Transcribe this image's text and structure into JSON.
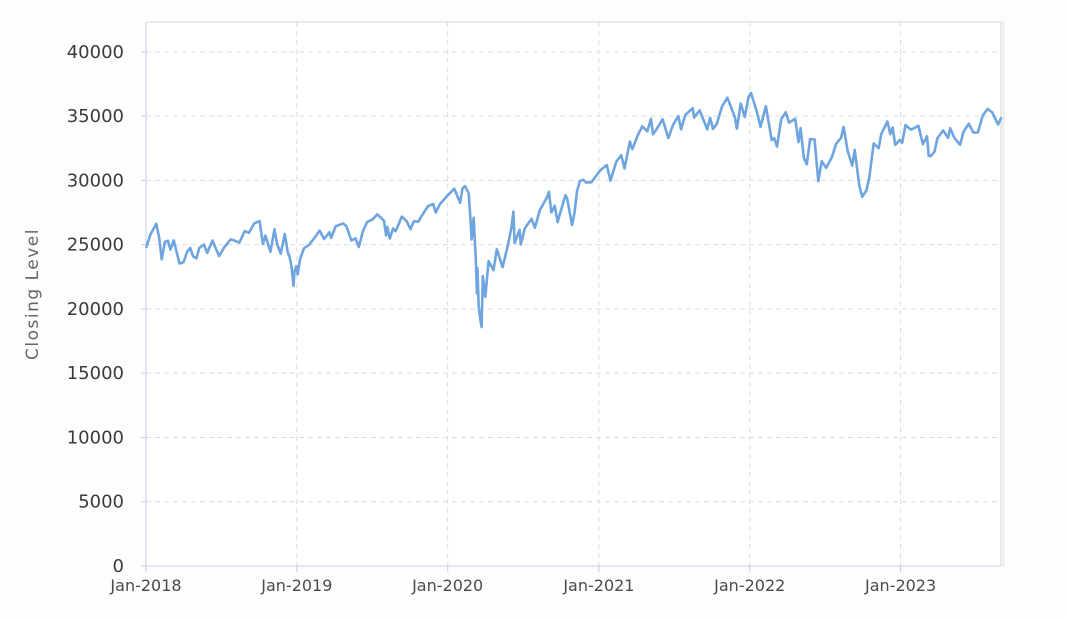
{
  "page": {
    "background": "#fdfdfb"
  },
  "chart_data": {
    "type": "line",
    "title": "",
    "xlabel": "",
    "ylabel": "Closing Level",
    "legend": "none",
    "grid": "dashed-both-axes",
    "ylim": [
      0,
      42320
    ],
    "yticks": [
      0,
      5000,
      10000,
      15000,
      20000,
      25000,
      30000,
      35000,
      40000
    ],
    "x_range": [
      "2018-01-01",
      "2023-09-01"
    ],
    "xticks": [
      {
        "label": "Jan-2018",
        "date": "2018-01-01"
      },
      {
        "label": "Jan-2019",
        "date": "2019-01-01"
      },
      {
        "label": "Jan-2020",
        "date": "2020-01-01"
      },
      {
        "label": "Jan-2021",
        "date": "2021-01-01"
      },
      {
        "label": "Jan-2022",
        "date": "2022-01-01"
      },
      {
        "label": "Jan-2023",
        "date": "2023-01-01"
      }
    ],
    "colors": {
      "line": "#6fa5df",
      "grid": "#dbdbdb",
      "axis": "#c8cce8",
      "border": "#d6d6d6",
      "border_shadow": "#ececec",
      "tick_text": "#3b3b3b",
      "axis_title_text": "#666666",
      "plot_bg": "#ffffff"
    },
    "series": [
      {
        "name": "Closing Level",
        "points": [
          [
            "2018-01-02",
            24824
          ],
          [
            "2018-01-12",
            25803
          ],
          [
            "2018-01-26",
            26617
          ],
          [
            "2018-02-02",
            25521
          ],
          [
            "2018-02-08",
            23860
          ],
          [
            "2018-02-16",
            25219
          ],
          [
            "2018-02-23",
            25310
          ],
          [
            "2018-03-01",
            24608
          ],
          [
            "2018-03-09",
            25336
          ],
          [
            "2018-03-23",
            23533
          ],
          [
            "2018-04-02",
            23644
          ],
          [
            "2018-04-10",
            24408
          ],
          [
            "2018-04-18",
            24748
          ],
          [
            "2018-04-25",
            24084
          ],
          [
            "2018-05-03",
            23930
          ],
          [
            "2018-05-10",
            24739
          ],
          [
            "2018-05-21",
            25013
          ],
          [
            "2018-05-29",
            24361
          ],
          [
            "2018-06-11",
            25322
          ],
          [
            "2018-06-19",
            24700
          ],
          [
            "2018-06-27",
            24118
          ],
          [
            "2018-07-09",
            24776
          ],
          [
            "2018-07-25",
            25414
          ],
          [
            "2018-08-01",
            25334
          ],
          [
            "2018-08-15",
            25162
          ],
          [
            "2018-08-28",
            26064
          ],
          [
            "2018-09-07",
            25917
          ],
          [
            "2018-09-20",
            26657
          ],
          [
            "2018-10-03",
            26828
          ],
          [
            "2018-10-11",
            25053
          ],
          [
            "2018-10-17",
            25707
          ],
          [
            "2018-10-29",
            24443
          ],
          [
            "2018-11-08",
            26191
          ],
          [
            "2018-11-14",
            25081
          ],
          [
            "2018-11-23",
            24286
          ],
          [
            "2018-12-03",
            25826
          ],
          [
            "2018-12-10",
            24423
          ],
          [
            "2018-12-14",
            24101
          ],
          [
            "2018-12-19",
            23324
          ],
          [
            "2018-12-24",
            21792
          ],
          [
            "2018-12-26",
            22878
          ],
          [
            "2018-12-31",
            23327
          ],
          [
            "2019-01-03",
            22686
          ],
          [
            "2019-01-09",
            23879
          ],
          [
            "2019-01-18",
            24706
          ],
          [
            "2019-01-31",
            24999
          ],
          [
            "2019-02-13",
            25543
          ],
          [
            "2019-02-25",
            26092
          ],
          [
            "2019-03-08",
            25450
          ],
          [
            "2019-03-21",
            25963
          ],
          [
            "2019-03-25",
            25517
          ],
          [
            "2019-04-05",
            26425
          ],
          [
            "2019-04-23",
            26656
          ],
          [
            "2019-05-01",
            26430
          ],
          [
            "2019-05-13",
            25325
          ],
          [
            "2019-05-23",
            25490
          ],
          [
            "2019-05-31",
            24815
          ],
          [
            "2019-06-10",
            26063
          ],
          [
            "2019-06-20",
            26753
          ],
          [
            "2019-07-03",
            26966
          ],
          [
            "2019-07-15",
            27359
          ],
          [
            "2019-07-31",
            26864
          ],
          [
            "2019-08-05",
            25718
          ],
          [
            "2019-08-08",
            26378
          ],
          [
            "2019-08-14",
            25479
          ],
          [
            "2019-08-22",
            26252
          ],
          [
            "2019-08-28",
            26036
          ],
          [
            "2019-09-12",
            27182
          ],
          [
            "2019-09-24",
            26807
          ],
          [
            "2019-10-03",
            26201
          ],
          [
            "2019-10-11",
            26817
          ],
          [
            "2019-10-22",
            26788
          ],
          [
            "2019-11-01",
            27347
          ],
          [
            "2019-11-15",
            28005
          ],
          [
            "2019-11-27",
            28164
          ],
          [
            "2019-12-03",
            27502
          ],
          [
            "2019-12-13",
            28135
          ],
          [
            "2019-12-27",
            28645
          ],
          [
            "2020-01-02",
            28869
          ],
          [
            "2020-01-17",
            29348
          ],
          [
            "2020-01-31",
            28256
          ],
          [
            "2020-02-06",
            29380
          ],
          [
            "2020-02-12",
            29551
          ],
          [
            "2020-02-21",
            28992
          ],
          [
            "2020-02-25",
            27081
          ],
          [
            "2020-02-28",
            25409
          ],
          [
            "2020-03-04",
            27090
          ],
          [
            "2020-03-09",
            23851
          ],
          [
            "2020-03-12",
            21200
          ],
          [
            "2020-03-13",
            23186
          ],
          [
            "2020-03-16",
            20188
          ],
          [
            "2020-03-20",
            19174
          ],
          [
            "2020-03-23",
            18592
          ],
          [
            "2020-03-26",
            22552
          ],
          [
            "2020-04-01",
            20944
          ],
          [
            "2020-04-09",
            23719
          ],
          [
            "2020-04-21",
            23018
          ],
          [
            "2020-04-29",
            24634
          ],
          [
            "2020-05-13",
            23248
          ],
          [
            "2020-05-26",
            24995
          ],
          [
            "2020-06-03",
            26270
          ],
          [
            "2020-06-08",
            27572
          ],
          [
            "2020-06-11",
            25128
          ],
          [
            "2020-06-23",
            26156
          ],
          [
            "2020-06-26",
            25016
          ],
          [
            "2020-07-06",
            26287
          ],
          [
            "2020-07-14",
            26643
          ],
          [
            "2020-07-22",
            27005
          ],
          [
            "2020-07-30",
            26313
          ],
          [
            "2020-08-11",
            27687
          ],
          [
            "2020-08-28",
            28654
          ],
          [
            "2020-09-02",
            29101
          ],
          [
            "2020-09-08",
            27501
          ],
          [
            "2020-09-16",
            28032
          ],
          [
            "2020-09-23",
            26763
          ],
          [
            "2020-10-12",
            28838
          ],
          [
            "2020-10-16",
            28606
          ],
          [
            "2020-10-28",
            26520
          ],
          [
            "2020-11-03",
            27480
          ],
          [
            "2020-11-09",
            29158
          ],
          [
            "2020-11-16",
            29950
          ],
          [
            "2020-11-24",
            30046
          ],
          [
            "2020-12-01",
            29824
          ],
          [
            "2020-12-14",
            29861
          ],
          [
            "2020-12-31",
            30606
          ],
          [
            "2021-01-06",
            30830
          ],
          [
            "2021-01-20",
            31188
          ],
          [
            "2021-01-29",
            29983
          ],
          [
            "2021-02-12",
            31458
          ],
          [
            "2021-02-24",
            31962
          ],
          [
            "2021-03-04",
            30924
          ],
          [
            "2021-03-17",
            33015
          ],
          [
            "2021-03-23",
            32423
          ],
          [
            "2021-04-05",
            33527
          ],
          [
            "2021-04-16",
            34201
          ],
          [
            "2021-04-28",
            33820
          ],
          [
            "2021-05-07",
            34778
          ],
          [
            "2021-05-12",
            33588
          ],
          [
            "2021-05-19",
            33896
          ],
          [
            "2021-06-04",
            34756
          ],
          [
            "2021-06-18",
            33290
          ],
          [
            "2021-06-29",
            34292
          ],
          [
            "2021-07-12",
            34996
          ],
          [
            "2021-07-19",
            33962
          ],
          [
            "2021-07-29",
            35085
          ],
          [
            "2021-08-16",
            35625
          ],
          [
            "2021-08-19",
            34894
          ],
          [
            "2021-09-02",
            35444
          ],
          [
            "2021-09-20",
            33970
          ],
          [
            "2021-09-27",
            34869
          ],
          [
            "2021-10-04",
            34003
          ],
          [
            "2021-10-13",
            34378
          ],
          [
            "2021-10-26",
            35757
          ],
          [
            "2021-11-08",
            36432
          ],
          [
            "2021-11-26",
            34899
          ],
          [
            "2021-12-01",
            34022
          ],
          [
            "2021-12-10",
            35971
          ],
          [
            "2021-12-20",
            34932
          ],
          [
            "2021-12-29",
            36488
          ],
          [
            "2022-01-04",
            36800
          ],
          [
            "2022-01-18",
            35369
          ],
          [
            "2022-01-27",
            34160
          ],
          [
            "2022-02-09",
            35768
          ],
          [
            "2022-02-23",
            33131
          ],
          [
            "2022-03-01",
            33295
          ],
          [
            "2022-03-08",
            32632
          ],
          [
            "2022-03-18",
            34755
          ],
          [
            "2022-03-29",
            35294
          ],
          [
            "2022-04-06",
            34496
          ],
          [
            "2022-04-21",
            34793
          ],
          [
            "2022-04-29",
            32977
          ],
          [
            "2022-05-04",
            34061
          ],
          [
            "2022-05-12",
            31730
          ],
          [
            "2022-05-19",
            31253
          ],
          [
            "2022-05-27",
            33213
          ],
          [
            "2022-06-07",
            33180
          ],
          [
            "2022-06-16",
            29927
          ],
          [
            "2022-06-24",
            31501
          ],
          [
            "2022-07-05",
            30968
          ],
          [
            "2022-07-19",
            31827
          ],
          [
            "2022-07-29",
            32845
          ],
          [
            "2022-08-10",
            33310
          ],
          [
            "2022-08-16",
            34152
          ],
          [
            "2022-08-26",
            32283
          ],
          [
            "2022-09-06",
            31145
          ],
          [
            "2022-09-12",
            32381
          ],
          [
            "2022-09-23",
            29590
          ],
          [
            "2022-09-30",
            28725
          ],
          [
            "2022-10-10",
            29203
          ],
          [
            "2022-10-17",
            30186
          ],
          [
            "2022-10-28",
            32862
          ],
          [
            "2022-11-09",
            32514
          ],
          [
            "2022-11-15",
            33593
          ],
          [
            "2022-11-30",
            34590
          ],
          [
            "2022-12-07",
            33598
          ],
          [
            "2022-12-13",
            34109
          ],
          [
            "2022-12-19",
            32758
          ],
          [
            "2022-12-30",
            33147
          ],
          [
            "2023-01-05",
            32930
          ],
          [
            "2023-01-13",
            34303
          ],
          [
            "2023-01-26",
            33949
          ],
          [
            "2023-02-02",
            34054
          ],
          [
            "2023-02-13",
            34246
          ],
          [
            "2023-02-24",
            32817
          ],
          [
            "2023-03-06",
            33431
          ],
          [
            "2023-03-10",
            31910
          ],
          [
            "2023-03-15",
            31875
          ],
          [
            "2023-03-24",
            32238
          ],
          [
            "2023-03-31",
            33274
          ],
          [
            "2023-04-14",
            33886
          ],
          [
            "2023-04-26",
            33302
          ],
          [
            "2023-05-01",
            34052
          ],
          [
            "2023-05-11",
            33310
          ],
          [
            "2023-05-25",
            32765
          ],
          [
            "2023-06-02",
            33763
          ],
          [
            "2023-06-15",
            34408
          ],
          [
            "2023-06-26",
            33715
          ],
          [
            "2023-07-07",
            33735
          ],
          [
            "2023-07-19",
            35061
          ],
          [
            "2023-07-31",
            35560
          ],
          [
            "2023-08-11",
            35281
          ],
          [
            "2023-08-25",
            34347
          ],
          [
            "2023-09-01",
            34838
          ]
        ]
      }
    ]
  }
}
